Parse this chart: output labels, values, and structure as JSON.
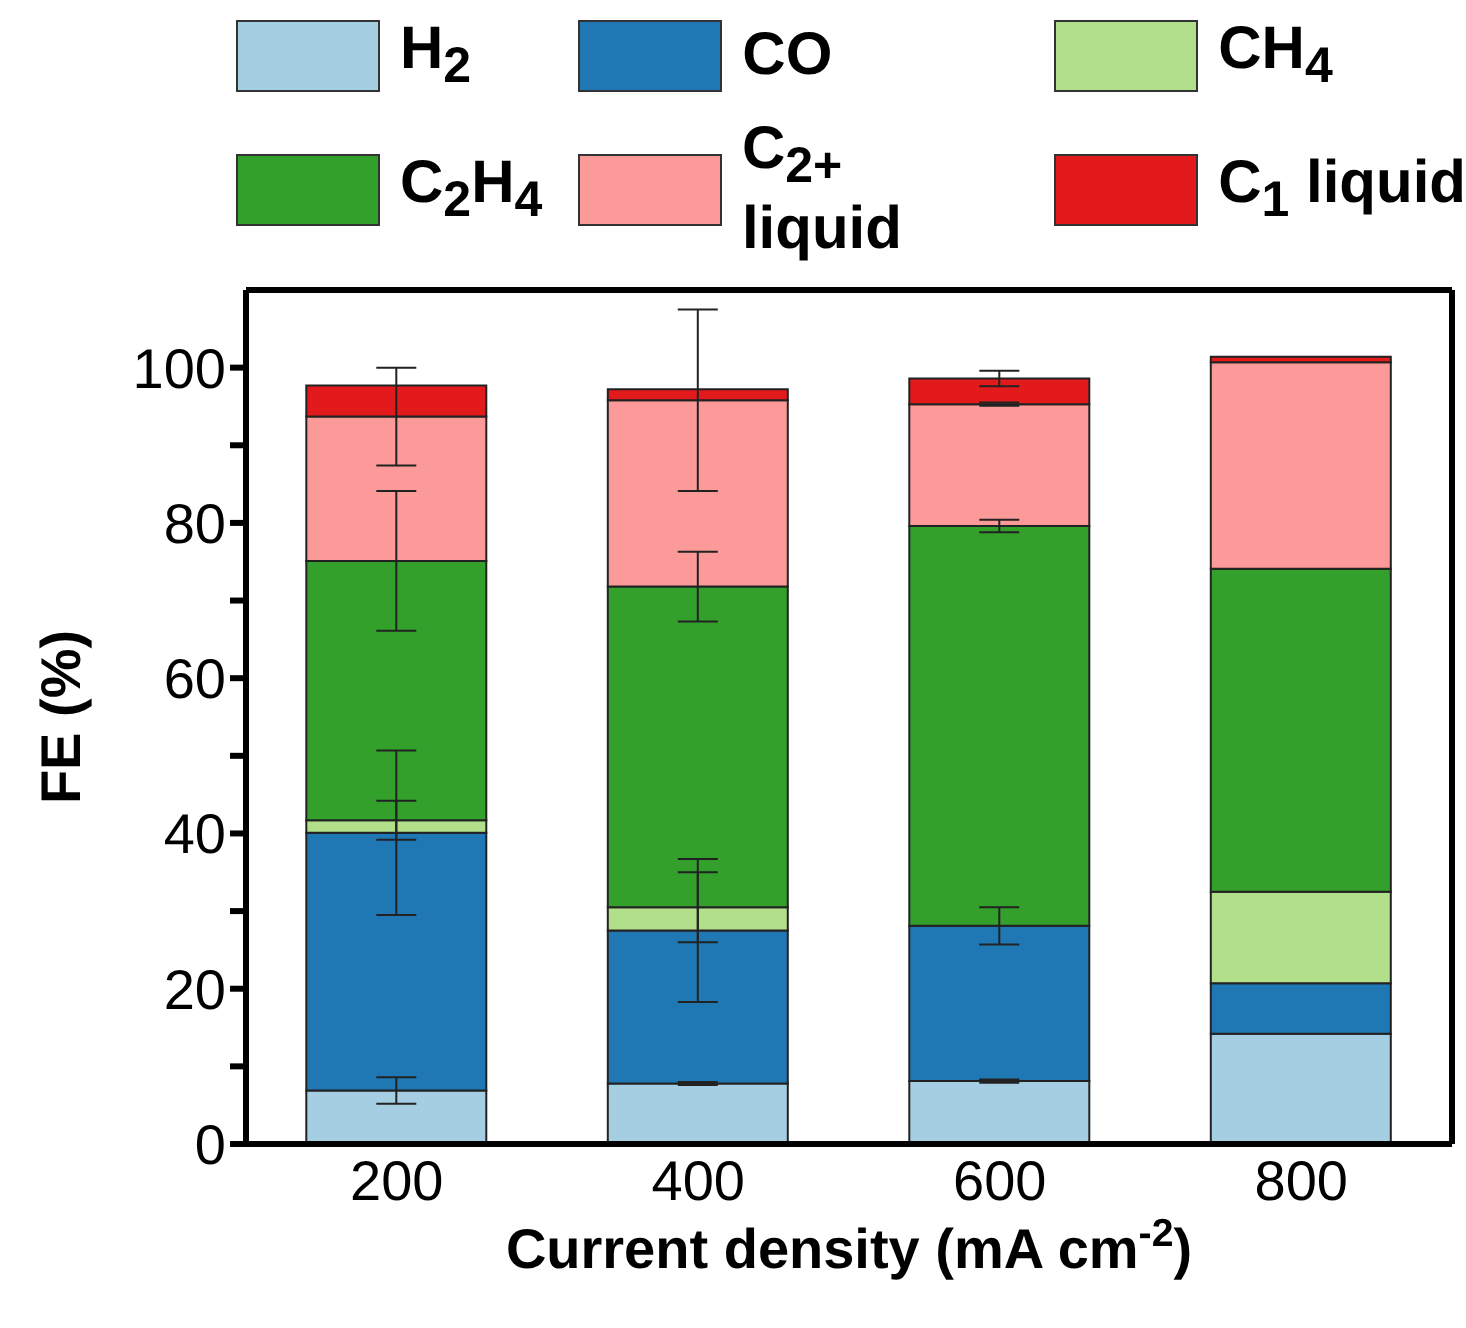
{
  "chart_data": {
    "type": "bar",
    "stacked": true,
    "xlabel": "Current density (mA cm$^{-2}$)",
    "ylabel": "FE (%)",
    "categories": [
      "200",
      "400",
      "600",
      "800"
    ],
    "series": [
      {
        "name": "H$_{2}$",
        "color": "#a6cee3",
        "values": [
          6.9,
          7.8,
          8.1,
          14.2
        ],
        "errors": [
          1.7,
          0.2,
          0.2,
          null
        ]
      },
      {
        "name": "CO",
        "color": "#1f78b4",
        "values": [
          33.2,
          19.7,
          20.0,
          6.5
        ],
        "errors": [
          10.6,
          9.2,
          2.4,
          null
        ]
      },
      {
        "name": "CH$_{4}$",
        "color": "#b2df8a",
        "values": [
          1.6,
          3.0,
          0,
          11.8
        ],
        "errors": [
          2.5,
          4.5,
          null,
          null
        ]
      },
      {
        "name": "C$_{2}$H$_{4}$",
        "color": "#33a02c",
        "values": [
          33.4,
          41.3,
          51.5,
          41.6
        ],
        "errors": [
          9.0,
          4.5,
          0.8,
          null
        ]
      },
      {
        "name": "C$_{2+}$ liquid",
        "color": "#fb9a99",
        "values": [
          18.6,
          24.0,
          15.7,
          26.6
        ],
        "errors": [
          6.3,
          11.7,
          0.2,
          null
        ]
      },
      {
        "name": "C$_{1}$ liquid",
        "color": "#e31a1c",
        "values": [
          4.0,
          1.4,
          3.3,
          0.7
        ],
        "errors": [
          null,
          null,
          1.0,
          null
        ]
      }
    ],
    "ylim": [
      0,
      110
    ],
    "yticks": [
      0,
      {
        "value": 10,
        "label": null
      },
      20,
      {
        "value": 30,
        "label": null
      },
      40,
      {
        "value": 50,
        "label": null
      },
      60,
      {
        "value": 70,
        "label": null
      },
      80,
      {
        "value": 90,
        "label": null
      },
      100
    ],
    "legend": "top",
    "grid": false
  }
}
